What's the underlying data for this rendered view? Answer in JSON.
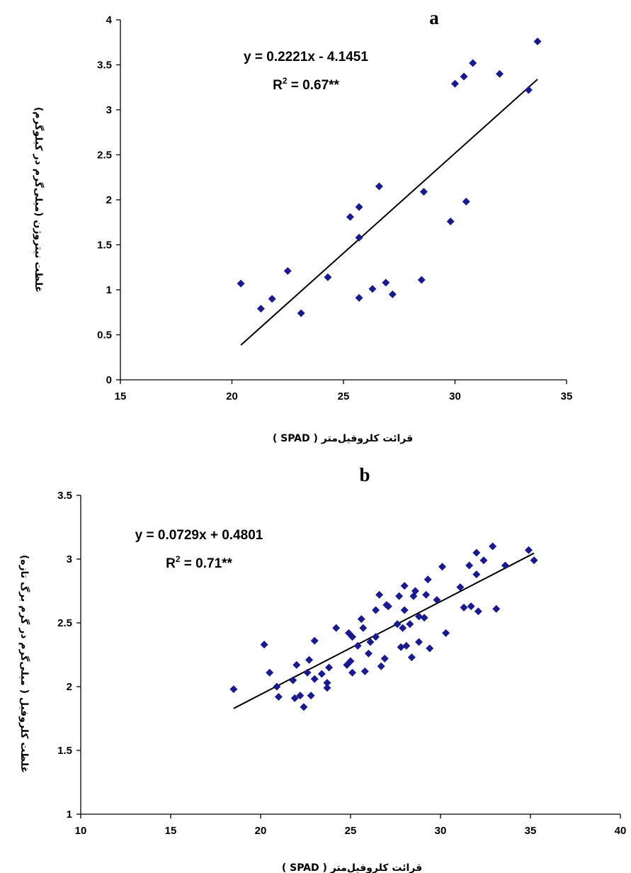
{
  "chart_data": [
    {
      "type": "scatter",
      "panel_label": "a",
      "xlabel": "قرائت کلروفیل‌متر ( SPAD )",
      "ylabel": "غلظت نیتروژن (میلی‌گرم در کیلوگرم)",
      "xlim": [
        15,
        35
      ],
      "ylim": [
        0,
        4
      ],
      "xticks": [
        "15",
        "20",
        "25",
        "30",
        "35"
      ],
      "yticks": [
        "0",
        "0.5",
        "1",
        "1.5",
        "2",
        "2.5",
        "3",
        "3.5",
        "4"
      ],
      "equation": "y = 0.2221x - 4.1451",
      "r2_prefix": "R",
      "r2_sup": "2",
      "r2_suffix": " = 0.67**",
      "grid": false,
      "marker_color": "#1a1a8c",
      "trendline": {
        "slope": 0.2221,
        "intercept": -4.1451,
        "x_range": [
          20.4,
          33.7
        ]
      },
      "points": [
        [
          20.4,
          1.07
        ],
        [
          21.3,
          0.79
        ],
        [
          21.8,
          0.9
        ],
        [
          22.5,
          1.21
        ],
        [
          23.1,
          0.74
        ],
        [
          24.3,
          1.14
        ],
        [
          25.3,
          1.81
        ],
        [
          25.7,
          1.92
        ],
        [
          25.7,
          1.58
        ],
        [
          25.7,
          0.91
        ],
        [
          26.3,
          1.01
        ],
        [
          26.6,
          2.15
        ],
        [
          26.9,
          1.08
        ],
        [
          27.2,
          0.95
        ],
        [
          28.5,
          1.11
        ],
        [
          28.6,
          2.09
        ],
        [
          29.8,
          1.76
        ],
        [
          30.0,
          3.29
        ],
        [
          30.4,
          3.37
        ],
        [
          30.5,
          1.98
        ],
        [
          30.8,
          3.52
        ],
        [
          32.0,
          3.4
        ],
        [
          33.3,
          3.22
        ],
        [
          33.7,
          3.76
        ]
      ]
    },
    {
      "type": "scatter",
      "panel_label": "b",
      "xlabel": "قرائت کلروفیل‌متر ( SPAD )",
      "ylabel": "غلظت کلروفیل ( میلی‌گرم در گرم برگ تازه)",
      "xlim": [
        10,
        40
      ],
      "ylim": [
        1,
        3.5
      ],
      "xticks": [
        "10",
        "15",
        "20",
        "25",
        "30",
        "35",
        "40"
      ],
      "yticks": [
        "1",
        "1.5",
        "2",
        "2.5",
        "3",
        "3.5"
      ],
      "equation": "y = 0.0729x + 0.4801",
      "r2_prefix": "R",
      "r2_sup": "2",
      "r2_suffix": " = 0.71**",
      "grid": false,
      "marker_color": "#1a1a8c",
      "trendline": {
        "slope": 0.0729,
        "intercept": 0.4801,
        "x_range": [
          18.5,
          35.2
        ]
      },
      "points": [
        [
          18.5,
          1.98
        ],
        [
          20.2,
          2.33
        ],
        [
          20.5,
          2.11
        ],
        [
          20.9,
          2.0
        ],
        [
          21.0,
          1.92
        ],
        [
          21.8,
          2.05
        ],
        [
          21.9,
          1.91
        ],
        [
          22.0,
          2.17
        ],
        [
          22.2,
          1.93
        ],
        [
          22.4,
          1.84
        ],
        [
          22.6,
          2.11
        ],
        [
          22.7,
          2.21
        ],
        [
          22.8,
          1.93
        ],
        [
          23.0,
          2.36
        ],
        [
          23.0,
          2.06
        ],
        [
          23.4,
          2.1
        ],
        [
          23.7,
          1.99
        ],
        [
          23.7,
          2.03
        ],
        [
          23.8,
          2.15
        ],
        [
          24.2,
          2.46
        ],
        [
          24.8,
          2.17
        ],
        [
          24.9,
          2.42
        ],
        [
          25.0,
          2.2
        ],
        [
          25.1,
          2.39
        ],
        [
          25.1,
          2.11
        ],
        [
          25.4,
          2.32
        ],
        [
          25.6,
          2.53
        ],
        [
          25.7,
          2.46
        ],
        [
          25.8,
          2.12
        ],
        [
          26.0,
          2.26
        ],
        [
          26.1,
          2.35
        ],
        [
          26.4,
          2.39
        ],
        [
          26.4,
          2.6
        ],
        [
          26.6,
          2.72
        ],
        [
          26.7,
          2.16
        ],
        [
          26.9,
          2.22
        ],
        [
          27.0,
          2.64
        ],
        [
          27.1,
          2.63
        ],
        [
          27.6,
          2.49
        ],
        [
          27.7,
          2.71
        ],
        [
          27.8,
          2.31
        ],
        [
          27.9,
          2.46
        ],
        [
          28.0,
          2.6
        ],
        [
          28.0,
          2.79
        ],
        [
          28.1,
          2.32
        ],
        [
          28.3,
          2.49
        ],
        [
          28.4,
          2.23
        ],
        [
          28.5,
          2.71
        ],
        [
          28.6,
          2.75
        ],
        [
          28.8,
          2.35
        ],
        [
          28.8,
          2.55
        ],
        [
          29.1,
          2.54
        ],
        [
          29.2,
          2.72
        ],
        [
          29.3,
          2.84
        ],
        [
          29.4,
          2.3
        ],
        [
          29.8,
          2.68
        ],
        [
          30.1,
          2.94
        ],
        [
          30.3,
          2.42
        ],
        [
          31.1,
          2.78
        ],
        [
          31.3,
          2.62
        ],
        [
          31.6,
          2.95
        ],
        [
          31.7,
          2.63
        ],
        [
          32.0,
          2.88
        ],
        [
          32.0,
          3.05
        ],
        [
          32.1,
          2.59
        ],
        [
          32.4,
          2.99
        ],
        [
          32.9,
          3.1
        ],
        [
          33.1,
          2.61
        ],
        [
          33.6,
          2.95
        ],
        [
          34.9,
          3.07
        ],
        [
          35.2,
          2.99
        ]
      ]
    }
  ]
}
